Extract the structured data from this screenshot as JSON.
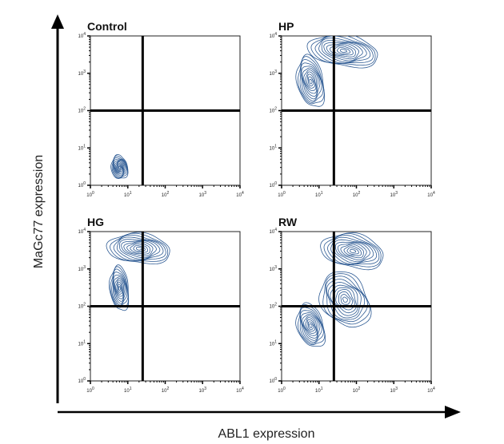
{
  "figure": {
    "y_axis_title": "MaGc77 expression",
    "x_axis_title": "ABL1 expression",
    "colors": {
      "contour": "#2e5b94",
      "gate": "#000000",
      "axis": "#000000"
    }
  },
  "chart_data": [
    {
      "type": "contour",
      "title": "Control",
      "xscale": "log",
      "yscale": "log",
      "xlim": [
        1,
        10000
      ],
      "ylim": [
        1,
        10000
      ],
      "xticks": [
        "10^0",
        "10^1",
        "10^2",
        "10^3",
        "10^4"
      ],
      "yticks": [
        "10^0",
        "10^1",
        "10^2",
        "10^3",
        "10^4"
      ],
      "gate": {
        "x": 25,
        "y": 100
      },
      "populations": [
        {
          "cx": 6,
          "cy": 3,
          "sx": 0.22,
          "sy": 0.32,
          "rot": 0.2
        }
      ]
    },
    {
      "type": "contour",
      "title": "HP",
      "xscale": "log",
      "yscale": "log",
      "xlim": [
        1,
        10000
      ],
      "ylim": [
        1,
        10000
      ],
      "xticks": [
        "10^0",
        "10^1",
        "10^2",
        "10^3",
        "10^4"
      ],
      "yticks": [
        "10^0",
        "10^1",
        "10^2",
        "10^3",
        "10^4"
      ],
      "gate": {
        "x": 25,
        "y": 100
      },
      "populations": [
        {
          "cx": 45,
          "cy": 4000,
          "sx": 0.95,
          "sy": 0.42,
          "rot": -0.15
        },
        {
          "cx": 6,
          "cy": 600,
          "sx": 0.35,
          "sy": 0.7,
          "rot": 0.2
        }
      ]
    },
    {
      "type": "contour",
      "title": "HG",
      "xscale": "log",
      "yscale": "log",
      "xlim": [
        1,
        10000
      ],
      "ylim": [
        1,
        10000
      ],
      "xticks": [
        "10^0",
        "10^1",
        "10^2",
        "10^3",
        "10^4"
      ],
      "yticks": [
        "10^0",
        "10^1",
        "10^2",
        "10^3",
        "10^4"
      ],
      "gate": {
        "x": 25,
        "y": 100
      },
      "populations": [
        {
          "cx": 20,
          "cy": 3500,
          "sx": 0.85,
          "sy": 0.4,
          "rot": -0.1
        },
        {
          "cx": 6,
          "cy": 300,
          "sx": 0.25,
          "sy": 0.6,
          "rot": 0.1
        }
      ]
    },
    {
      "type": "contour",
      "title": "RW",
      "xscale": "log",
      "yscale": "log",
      "xlim": [
        1,
        10000
      ],
      "ylim": [
        1,
        10000
      ],
      "xticks": [
        "10^0",
        "10^1",
        "10^2",
        "10^3",
        "10^4"
      ],
      "yticks": [
        "10^0",
        "10^1",
        "10^2",
        "10^3",
        "10^4"
      ],
      "gate": {
        "x": 25,
        "y": 100
      },
      "populations": [
        {
          "cx": 80,
          "cy": 3000,
          "sx": 0.85,
          "sy": 0.45,
          "rot": -0.2
        },
        {
          "cx": 6,
          "cy": 30,
          "sx": 0.35,
          "sy": 0.6,
          "rot": 0.3
        },
        {
          "cx": 50,
          "cy": 150,
          "sx": 0.6,
          "sy": 0.8,
          "rot": 0.6
        }
      ]
    }
  ]
}
